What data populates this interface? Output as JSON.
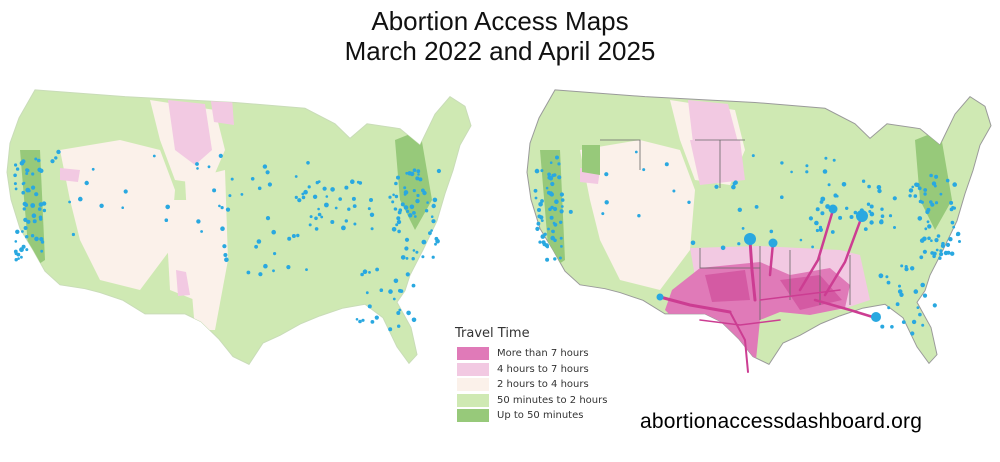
{
  "title": {
    "line1": "Abortion Access Maps",
    "line2": "March 2022 and April 2025"
  },
  "maps": [
    {
      "name": "march-2022",
      "label": "March 2022"
    },
    {
      "name": "april-2025",
      "label": "April 2025"
    }
  ],
  "legend": {
    "title": "Travel Time",
    "items": [
      {
        "label": "More than 7 hours",
        "color": "#e07ab8"
      },
      {
        "label": "4 hours to 7 hours",
        "color": "#f2c9e2"
      },
      {
        "label": "2 hours to 4 hours",
        "color": "#fbf1ea"
      },
      {
        "label": "50 minutes to 2 hours",
        "color": "#cfe9b3"
      },
      {
        "label": "Up to 50 minutes",
        "color": "#97c97a"
      }
    ]
  },
  "colors": {
    "clinic_marker": "#29a8e0",
    "route_line": "#cc3d92"
  },
  "source": "abortionaccessdashboard.org"
}
